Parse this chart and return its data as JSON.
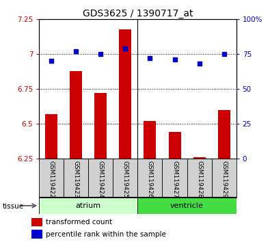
{
  "title": "GDS3625 / 1390717_at",
  "samples": [
    "GSM119422",
    "GSM119423",
    "GSM119424",
    "GSM119425",
    "GSM119426",
    "GSM119427",
    "GSM119428",
    "GSM119429"
  ],
  "bar_values": [
    6.57,
    6.88,
    6.72,
    7.18,
    6.52,
    6.44,
    6.26,
    6.6
  ],
  "dot_values": [
    70,
    77,
    75,
    79,
    72,
    71,
    68,
    75
  ],
  "bar_color": "#cc0000",
  "dot_color": "#0000cc",
  "ylim_left": [
    6.25,
    7.25
  ],
  "ylim_right": [
    0,
    100
  ],
  "yticks_left": [
    6.25,
    6.5,
    6.75,
    7.0,
    7.25
  ],
  "ytick_labels_left": [
    "6.25",
    "6.5",
    "6.75",
    "7",
    "7.25"
  ],
  "yticks_right": [
    0,
    25,
    50,
    75,
    100
  ],
  "ytick_labels_right": [
    "0",
    "25",
    "50",
    "75",
    "100%"
  ],
  "hlines": [
    6.5,
    6.75,
    7.0
  ],
  "groups": [
    {
      "label": "atrium",
      "start": 0,
      "end": 4,
      "color": "#ccffcc"
    },
    {
      "label": "ventricle",
      "start": 4,
      "end": 8,
      "color": "#44dd44"
    }
  ],
  "tissue_label": "tissue",
  "legend": [
    {
      "label": "transformed count",
      "color": "#cc0000"
    },
    {
      "label": "percentile rank within the sample",
      "color": "#0000cc"
    }
  ],
  "bar_width": 0.5,
  "plot_bg": "#ffffff",
  "label_bg": "#d0d0d0"
}
